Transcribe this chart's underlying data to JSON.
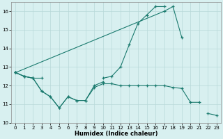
{
  "xlabel": "Humidex (Indice chaleur)",
  "color": "#1a7a6e",
  "bg_color": "#d8f0f0",
  "grid_color": "#b8d8d8",
  "ylim": [
    10,
    16.5
  ],
  "xlim": [
    -0.5,
    23.5
  ],
  "yticks": [
    10,
    11,
    12,
    13,
    14,
    15,
    16
  ],
  "xticks": [
    0,
    1,
    2,
    3,
    4,
    5,
    6,
    7,
    8,
    9,
    10,
    11,
    12,
    13,
    14,
    15,
    16,
    17,
    18,
    19,
    20,
    21,
    22,
    23
  ],
  "line1_x": [
    0,
    1,
    2,
    3,
    10,
    11,
    12,
    13,
    14,
    15,
    16,
    17
  ],
  "line1_y": [
    12.7,
    12.5,
    12.4,
    12.4,
    12.4,
    12.5,
    13.0,
    14.2,
    15.35,
    15.8,
    16.25,
    16.25
  ],
  "line2_x": [
    0,
    17,
    18,
    19
  ],
  "line2_y": [
    12.7,
    16.0,
    16.25,
    14.6
  ],
  "line3_x": [
    0,
    1,
    2,
    3,
    4,
    5,
    6,
    7,
    8,
    9,
    10,
    11,
    12,
    13,
    14,
    15,
    16,
    17,
    18,
    19,
    20,
    21
  ],
  "line3_y": [
    12.7,
    12.5,
    12.4,
    11.7,
    11.4,
    10.8,
    11.4,
    11.2,
    11.2,
    11.9,
    12.1,
    12.1,
    12.0,
    12.0,
    12.0,
    12.0,
    12.0,
    12.0,
    11.9,
    11.85,
    11.1,
    11.1
  ],
  "line4_x": [
    0,
    1,
    2,
    3,
    4,
    5,
    6,
    7,
    8,
    9,
    10,
    22,
    23
  ],
  "line4_y": [
    12.7,
    12.5,
    12.4,
    11.7,
    11.4,
    10.8,
    11.4,
    11.2,
    11.2,
    12.0,
    12.2,
    10.5,
    10.4
  ],
  "line4_break": 10
}
